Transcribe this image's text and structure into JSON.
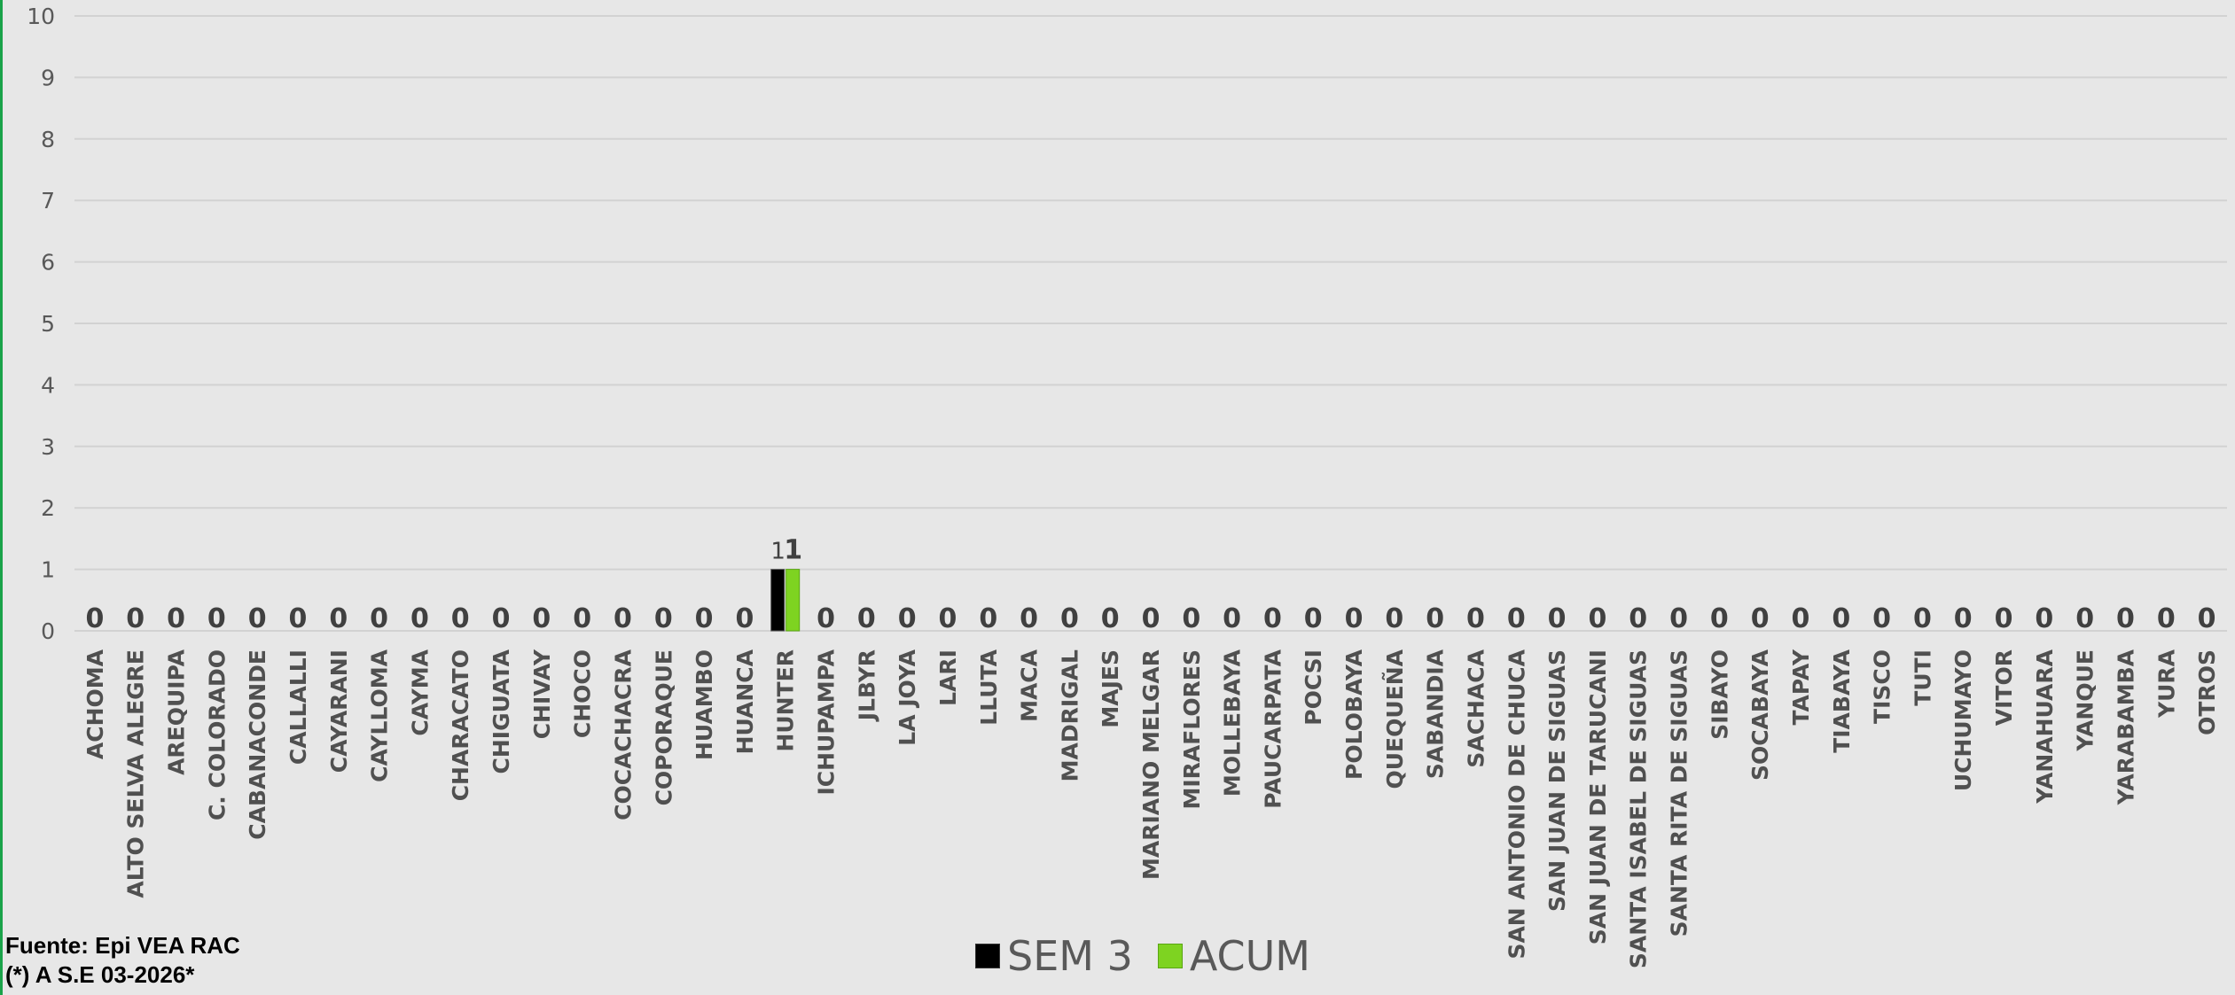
{
  "chart_data": {
    "type": "bar",
    "categories": [
      "ACHOMA",
      "ALTO SELVA ALEGRE",
      "AREQUIPA",
      "C. COLORADO",
      "CABANACONDE",
      "CALLALLI",
      "CAYARANI",
      "CAYLLOMA",
      "CAYMA",
      "CHARACATO",
      "CHIGUATA",
      "CHIVAY",
      "CHOCO",
      "COCACHACRA",
      "COPORAQUE",
      "HUAMBO",
      "HUANCA",
      "HUNTER",
      "ICHUPAMPA",
      "JLBYR",
      "LA JOYA",
      "LARI",
      "LLUTA",
      "MACA",
      "MADRIGAL",
      "MAJES",
      "MARIANO MELGAR",
      "MIRAFLORES",
      "MOLLEBAYA",
      "PAUCARPATA",
      "POCSI",
      "POLOBAYA",
      "QUEQUEÑA",
      "SABANDIA",
      "SACHACA",
      "SAN ANTONIO DE CHUCA",
      "SAN JUAN DE SIGUAS",
      "SAN JUAN DE TARUCANI",
      "SANTA ISABEL DE SIGUAS",
      "SANTA RITA DE SIGUAS",
      "SIBAYO",
      "SOCABAYA",
      "TAPAY",
      "TIABAYA",
      "TISCO",
      "TUTI",
      "UCHUMAYO",
      "VITOR",
      "YANAHUARA",
      "YANQUE",
      "YARABAMBA",
      "YURA",
      "OTROS"
    ],
    "series": [
      {
        "name": "SEM 3",
        "color": "#000000",
        "values": [
          0,
          0,
          0,
          0,
          0,
          0,
          0,
          0,
          0,
          0,
          0,
          0,
          0,
          0,
          0,
          0,
          0,
          1,
          0,
          0,
          0,
          0,
          0,
          0,
          0,
          0,
          0,
          0,
          0,
          0,
          0,
          0,
          0,
          0,
          0,
          0,
          0,
          0,
          0,
          0,
          0,
          0,
          0,
          0,
          0,
          0,
          0,
          0,
          0,
          0,
          0,
          0,
          0
        ]
      },
      {
        "name": "ACUM",
        "color": "#7ed321",
        "values": [
          0,
          0,
          0,
          0,
          0,
          0,
          0,
          0,
          0,
          0,
          0,
          0,
          0,
          0,
          0,
          0,
          0,
          1,
          0,
          0,
          0,
          0,
          0,
          0,
          0,
          0,
          0,
          0,
          0,
          0,
          0,
          0,
          0,
          0,
          0,
          0,
          0,
          0,
          0,
          0,
          0,
          0,
          0,
          0,
          0,
          0,
          0,
          0,
          0,
          0,
          0,
          0,
          0
        ]
      }
    ],
    "y_ticks": [
      "0",
      "1",
      "2",
      "3",
      "4",
      "5",
      "6",
      "7",
      "8",
      "9",
      "10"
    ],
    "ylim": [
      0,
      10
    ],
    "grid": true,
    "legend_position": "bottom"
  },
  "footer": {
    "line1": "Fuente: Epi VEA RAC",
    "line2": "(*) A S.E 03-2026*"
  },
  "legend": {
    "sem": "SEM 3",
    "acum": "ACUM"
  }
}
